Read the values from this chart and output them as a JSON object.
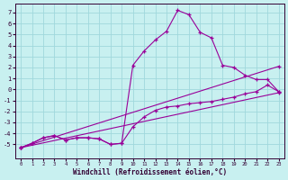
{
  "xlabel": "Windchill (Refroidissement éolien,°C)",
  "xlim": [
    -0.5,
    23.5
  ],
  "ylim": [
    -6.3,
    7.8
  ],
  "xticks": [
    0,
    1,
    2,
    3,
    4,
    5,
    6,
    7,
    8,
    9,
    10,
    11,
    12,
    13,
    14,
    15,
    16,
    17,
    18,
    19,
    20,
    21,
    22,
    23
  ],
  "yticks": [
    -5,
    -4,
    -3,
    -2,
    -1,
    0,
    1,
    2,
    3,
    4,
    5,
    6,
    7
  ],
  "bg_color": "#c8f0f0",
  "grid_color": "#a0d8dc",
  "line_color": "#990099",
  "curve1_x": [
    0,
    1,
    2,
    3,
    4,
    5,
    6,
    7,
    8,
    9,
    10,
    11,
    12,
    13,
    14,
    15,
    16,
    17,
    18,
    19,
    20,
    21,
    22,
    23
  ],
  "curve1_y": [
    -5.3,
    -4.9,
    -4.4,
    -4.2,
    -4.6,
    -4.4,
    -4.4,
    -4.5,
    -5.0,
    -4.9,
    2.2,
    3.5,
    4.5,
    5.3,
    7.2,
    6.8,
    5.2,
    4.7,
    2.2,
    2.0,
    1.3,
    0.9,
    0.9,
    -0.2
  ],
  "curve2_x": [
    0,
    23
  ],
  "curve2_y": [
    -5.3,
    2.1
  ],
  "curve3_x": [
    0,
    23
  ],
  "curve3_y": [
    -5.3,
    -0.3
  ],
  "curve4_x": [
    0,
    1,
    2,
    3,
    4,
    5,
    6,
    7,
    8,
    9,
    10,
    11,
    12,
    13,
    14,
    15,
    16,
    17,
    18,
    19,
    20,
    21,
    22,
    23
  ],
  "curve4_y": [
    -5.3,
    -4.9,
    -4.4,
    -4.2,
    -4.6,
    -4.4,
    -4.4,
    -4.5,
    -5.0,
    -4.9,
    -3.4,
    -2.5,
    -1.9,
    -1.6,
    -1.5,
    -1.3,
    -1.2,
    -1.1,
    -0.9,
    -0.7,
    -0.4,
    -0.2,
    0.4,
    -0.2
  ]
}
